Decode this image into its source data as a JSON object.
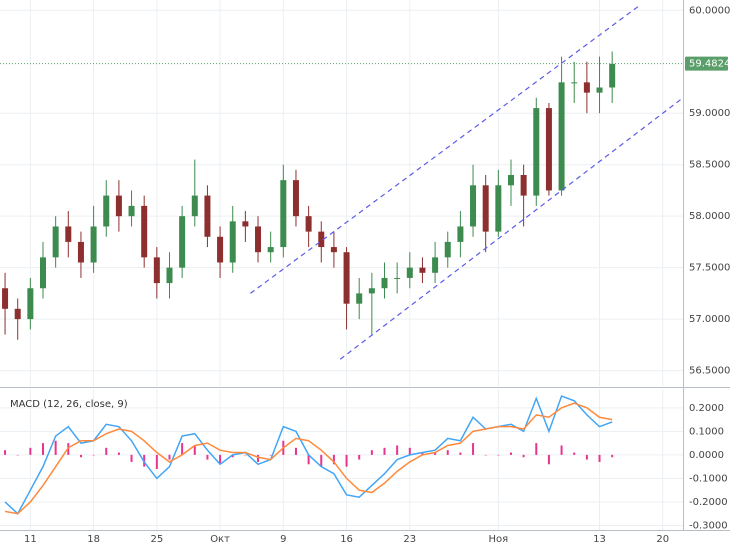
{
  "chart_data": [
    {
      "type": "candlestick",
      "open": [
        57.3,
        57.1,
        57.0,
        57.3,
        57.6,
        57.9,
        57.75,
        57.55,
        57.9,
        58.2,
        58.0,
        58.1,
        57.6,
        57.35,
        57.5,
        58.0,
        58.2,
        57.8,
        57.55,
        57.95,
        57.9,
        57.65,
        57.7,
        58.35,
        58.0,
        57.85,
        57.7,
        57.65,
        57.15,
        57.25,
        57.3,
        57.4,
        57.4,
        57.5,
        57.45,
        57.6,
        57.75,
        57.9,
        58.3,
        57.85,
        58.3,
        58.4,
        58.2,
        59.05,
        58.25,
        59.3,
        59.3,
        59.2,
        59.25
      ],
      "high": [
        57.45,
        57.2,
        57.4,
        57.75,
        58.0,
        58.05,
        57.85,
        58.1,
        58.35,
        58.35,
        58.25,
        58.2,
        57.7,
        57.65,
        58.1,
        58.55,
        58.3,
        57.9,
        58.1,
        58.05,
        58.0,
        57.85,
        58.5,
        58.45,
        58.1,
        57.95,
        57.85,
        57.7,
        57.4,
        57.45,
        57.55,
        57.55,
        57.65,
        57.6,
        57.75,
        57.85,
        58.05,
        58.5,
        58.4,
        58.45,
        58.55,
        58.5,
        59.15,
        59.1,
        59.55,
        59.5,
        59.5,
        59.55,
        59.6
      ],
      "low": [
        56.85,
        56.8,
        56.9,
        57.2,
        57.5,
        57.6,
        57.4,
        57.45,
        57.8,
        57.85,
        57.9,
        57.5,
        57.2,
        57.2,
        57.4,
        57.9,
        57.7,
        57.4,
        57.45,
        57.75,
        57.55,
        57.55,
        57.6,
        57.9,
        57.7,
        57.55,
        57.5,
        56.9,
        57.0,
        56.85,
        57.2,
        57.25,
        57.3,
        57.35,
        57.35,
        57.5,
        57.6,
        57.8,
        57.65,
        57.8,
        58.1,
        57.9,
        58.1,
        58.2,
        58.2,
        59.1,
        59.0,
        59.0,
        59.1
      ],
      "close": [
        57.1,
        57.0,
        57.3,
        57.6,
        57.9,
        57.75,
        57.55,
        57.9,
        58.2,
        58.0,
        58.1,
        57.6,
        57.35,
        57.5,
        58.0,
        58.2,
        57.8,
        57.55,
        57.95,
        57.9,
        57.65,
        57.7,
        58.35,
        58.0,
        57.85,
        57.7,
        57.65,
        57.15,
        57.25,
        57.3,
        57.4,
        57.4,
        57.5,
        57.45,
        57.6,
        57.75,
        57.9,
        58.3,
        57.85,
        58.3,
        58.4,
        58.2,
        59.05,
        58.25,
        59.3,
        59.3,
        59.2,
        59.25,
        59.48
      ],
      "up_color": "#3d8b4e",
      "down_color": "#8e2f2f",
      "ylim": [
        56.36,
        60.1
      ],
      "yticks": [
        {
          "value": 56.5,
          "label": "56.5000"
        },
        {
          "value": 57.0,
          "label": "57.0000"
        },
        {
          "value": 57.5,
          "label": "57.5000"
        },
        {
          "value": 58.0,
          "label": "58.0000"
        },
        {
          "value": 58.5,
          "label": "58.5000"
        },
        {
          "value": 59.0,
          "label": "59.0000"
        },
        {
          "value": 60.0,
          "label": "60.0000"
        }
      ],
      "xlim": [
        -0.4,
        53.6
      ],
      "xticks": [
        {
          "value": 2,
          "label": "11"
        },
        {
          "value": 7,
          "label": "18"
        },
        {
          "value": 12,
          "label": "25"
        },
        {
          "value": 17,
          "label": "Окт"
        },
        {
          "value": 22,
          "label": "9"
        },
        {
          "value": 27,
          "label": "16"
        },
        {
          "value": 32,
          "label": "23"
        },
        {
          "value": 39,
          "label": "Ноя"
        },
        {
          "value": 47,
          "label": "13"
        },
        {
          "value": 52,
          "label": "20"
        }
      ],
      "grid": true,
      "last_price": 59.4824,
      "last_price_color": "#5a9e6a",
      "trend_lines": [
        {
          "color": "#5b5bea",
          "x": [
            19.4,
            50.2
          ],
          "y": [
            57.25,
            60.05
          ]
        },
        {
          "color": "#5b5bea",
          "x": [
            26.5,
            53.6
          ],
          "y": [
            56.61,
            59.15
          ]
        }
      ]
    },
    {
      "type": "macd",
      "title": "MACD (12, 26, close, 9)",
      "series": [
        {
          "type": "bar",
          "color": "#e8338f",
          "values": [
            0.02,
            0.0,
            0.03,
            0.05,
            0.06,
            0.05,
            -0.01,
            0.0,
            0.03,
            0.01,
            -0.03,
            -0.05,
            -0.06,
            -0.02,
            0.05,
            0.04,
            -0.02,
            -0.04,
            -0.01,
            0.0,
            -0.03,
            0.0,
            0.06,
            0.03,
            -0.04,
            -0.05,
            -0.04,
            -0.05,
            -0.02,
            0.02,
            0.03,
            0.04,
            0.03,
            0.01,
            0.01,
            0.02,
            0.01,
            0.05,
            0.0,
            0.0,
            0.01,
            -0.01,
            0.05,
            -0.04,
            0.04,
            0.01,
            -0.02,
            -0.03,
            -0.01
          ]
        },
        {
          "type": "line",
          "color": "#42a5f5",
          "values": [
            -0.2,
            -0.25,
            -0.15,
            -0.05,
            0.08,
            0.12,
            0.05,
            0.06,
            0.13,
            0.12,
            0.06,
            -0.03,
            -0.1,
            -0.05,
            0.08,
            0.09,
            0.02,
            -0.04,
            0.0,
            0.01,
            -0.04,
            -0.02,
            0.12,
            0.1,
            0.0,
            -0.05,
            -0.08,
            -0.17,
            -0.18,
            -0.13,
            -0.08,
            -0.02,
            0.0,
            0.01,
            0.02,
            0.07,
            0.06,
            0.16,
            0.11,
            0.12,
            0.13,
            0.1,
            0.24,
            0.1,
            0.25,
            0.23,
            0.17,
            0.12,
            0.14
          ]
        },
        {
          "type": "line",
          "color": "#ff8a3d",
          "values": [
            -0.24,
            -0.25,
            -0.2,
            -0.13,
            -0.05,
            0.03,
            0.06,
            0.06,
            0.09,
            0.11,
            0.1,
            0.06,
            0.01,
            -0.03,
            0.0,
            0.04,
            0.05,
            0.02,
            0.01,
            0.01,
            -0.01,
            -0.02,
            0.03,
            0.07,
            0.06,
            0.02,
            -0.03,
            -0.1,
            -0.15,
            -0.16,
            -0.12,
            -0.07,
            -0.03,
            0.0,
            0.01,
            0.04,
            0.05,
            0.1,
            0.11,
            0.12,
            0.12,
            0.11,
            0.17,
            0.16,
            0.2,
            0.22,
            0.2,
            0.16,
            0.15
          ]
        }
      ],
      "ylim": [
        -0.315,
        0.28
      ],
      "yticks": [
        {
          "value": -0.3,
          "label": "-0.3000"
        },
        {
          "value": -0.2,
          "label": "-0.2000"
        },
        {
          "value": -0.1,
          "label": "-0.1000"
        },
        {
          "value": 0.0,
          "label": "0.0000"
        },
        {
          "value": 0.1,
          "label": "0.1000"
        },
        {
          "value": 0.2,
          "label": "0.2000"
        }
      ],
      "grid": true
    }
  ]
}
